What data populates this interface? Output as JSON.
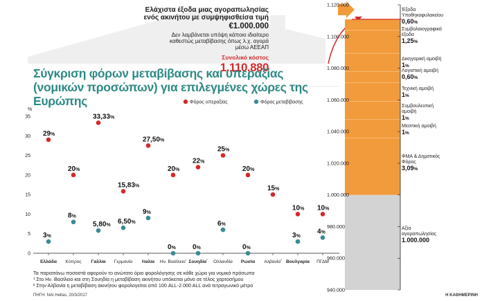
{
  "header": {
    "line1": "Ελάχιστα έξοδα μιας αγοραπωλησίας",
    "line2": "ενός ακινήτου με συμψηφισθείσα τιμή",
    "price": "€1.000.000",
    "note1": "Δεν λαμβάνεται υπόψη κάποιο ιδιαίτερο",
    "note2": "καθεστώς μεταβίβασης όπως λ.χ. αγορά",
    "note3": "μέσω ΑΕΕΑΠ",
    "total_label": "Συνολικό κόστος",
    "total_value": "1.110.880"
  },
  "title": {
    "line1": "Σύγκριση φόρων μεταβίβασης και υπεραξίας",
    "line2": "(νομικών προσώπων) για επιλεγμένες χώρες της Ευρώπης"
  },
  "footnotes": {
    "n0": "Τα παραπάνω ποσοστά αφορούν το ανώτατο όριο φορολόγησης σε κάθε χώρα για νομικά πρόσωπα",
    "n1": "¹ Στο Ην. Βασίλειο και στη Σουηδία η μεταβίβαση ακινήτου υπόκειται μόνο σε τέλος χαρτοσήμου",
    "n2": "² Στην Αλβανία η μεταβίβαση ακινήτου φορολογείται από 100 ALL-2.000 ALL ανά τετραγωνικό μέτρο",
    "source": "ΠΗΓΗ: NAI Hellas, 20/3/2017",
    "brand": "Η ΚΑΘΗΜΕΡΙΝΗ"
  },
  "colors": {
    "red": "#d42a2a",
    "teal": "#3a8a96",
    "orange": "#f29b3c",
    "gray": "#d3d3d3",
    "house": "#ececec"
  },
  "chart_data": [
    {
      "type": "scatter",
      "ylabel": "%",
      "ylim": [
        0,
        35
      ],
      "yticks": [
        0,
        5,
        10,
        15,
        20,
        25,
        30,
        35
      ],
      "grid": false,
      "legend_position": "top-right",
      "categories": [
        "Ελλάδα",
        "Κύπρος",
        "Γαλλία",
        "Γερμανία",
        "Ιταλία",
        "Ην. Βασίλειο¹",
        "Σουηδία¹",
        "Ολλανδία",
        "Ρωσία",
        "Αλβανία²",
        "Βουλγαρία",
        "ΠΓΔΜ"
      ],
      "bold_categories": [
        "Ελλάδα",
        "Γαλλία",
        "Ιταλία",
        "Σουηδία¹",
        "Ρωσία",
        "Βουλγαρία"
      ],
      "series": [
        {
          "name": "Φόρος υπεραξίας",
          "color": "#d42a2a",
          "values": [
            29,
            20,
            33.33,
            15.83,
            27.5,
            20,
            22,
            25,
            20,
            15,
            10,
            10
          ],
          "labels": [
            "29%",
            "20%",
            "33,33%",
            "15,83%",
            "27,50%",
            "20%",
            "22%",
            "25%",
            "20%",
            "15%",
            "10%",
            "10%"
          ]
        },
        {
          "name": "Φόρος μεταβίβασης",
          "color": "#3a8a96",
          "values": [
            3,
            8,
            5.8,
            6.5,
            9,
            0,
            0,
            6,
            0,
            null,
            3,
            4
          ],
          "labels": [
            "3%",
            "8%",
            "5,80%",
            "6,50%",
            "9%",
            "0%",
            "0%",
            "6%",
            "0%",
            "",
            "3%",
            "4%"
          ]
        }
      ]
    },
    {
      "type": "bar",
      "stacked": true,
      "ylim": [
        940000,
        1120000
      ],
      "yticks": [
        "940.000",
        "960.000",
        "980.000",
        "1.000.000",
        "1.020.000",
        "1.040.000",
        "1.060.000",
        "1.080.000",
        "1.100.000",
        "1.120.000"
      ],
      "yticks_values": [
        940000,
        960000,
        980000,
        1000000,
        1020000,
        1040000,
        1060000,
        1080000,
        1100000,
        1120000
      ],
      "segments": [
        {
          "name": "Αξία αγοραπωλησίας",
          "value": 1000000,
          "pct": "1.000.000",
          "color": "#d3d3d3"
        },
        {
          "name": "ΦΜΑ & Δημοτικός Φόρος",
          "pct": "3,09%",
          "color": "#f29b3c"
        },
        {
          "name": "Μεσιτική αμοιβή",
          "pct": "1%",
          "color": "#f29b3c"
        },
        {
          "name": "Συμβουλευτική αμοιβή",
          "pct": "1%",
          "color": "#f29b3c"
        },
        {
          "name": "Τεχνική αμοιβή",
          "pct": "1%",
          "color": "#f29b3c"
        },
        {
          "name": "Λογιστική αμοιβή",
          "pct": "0,60%",
          "color": "#f29b3c"
        },
        {
          "name": "Δικηγορική αμοιβή",
          "pct": "1%",
          "color": "#f29b3c"
        },
        {
          "name": "Συμβολαιογραφικά έξοδα",
          "pct": "1,25%",
          "color": "#f29b3c"
        },
        {
          "name": "Έξοδα Υποθηκοφυλακείου",
          "pct": "0,60%",
          "color": "#f29b3c"
        }
      ],
      "total": 1110880
    }
  ]
}
